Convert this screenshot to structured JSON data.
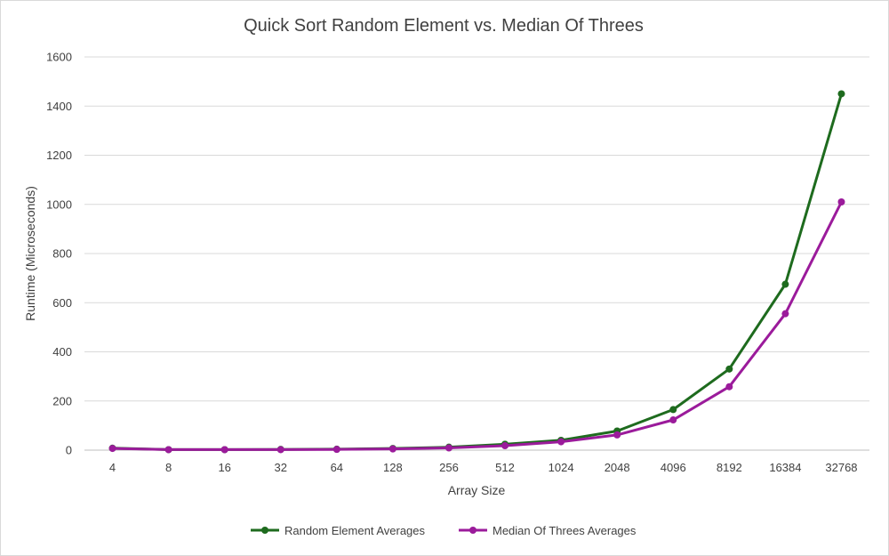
{
  "chart_data": {
    "type": "line",
    "title": "Quick Sort Random Element vs. Median Of Threes",
    "xlabel": "Array Size",
    "ylabel": "Runtime (Microseconds)",
    "categories": [
      "4",
      "8",
      "16",
      "32",
      "64",
      "128",
      "256",
      "512",
      "1024",
      "2048",
      "4096",
      "8192",
      "16384",
      "32768"
    ],
    "ylim": [
      0,
      1600
    ],
    "yticks": [
      0,
      200,
      400,
      600,
      800,
      1000,
      1200,
      1400,
      1600
    ],
    "grid": true,
    "legend_position": "bottom",
    "series": [
      {
        "name": "Random Element Averages",
        "color": "#1e6b1e",
        "values": [
          8,
          2,
          2,
          3,
          4,
          7,
          12,
          24,
          40,
          78,
          165,
          330,
          675,
          1450
        ]
      },
      {
        "name": "Median Of Threes Averages",
        "color": "#9b1b9b",
        "values": [
          7,
          2,
          2,
          2,
          3,
          5,
          9,
          18,
          34,
          62,
          123,
          258,
          555,
          1010
        ]
      }
    ]
  }
}
